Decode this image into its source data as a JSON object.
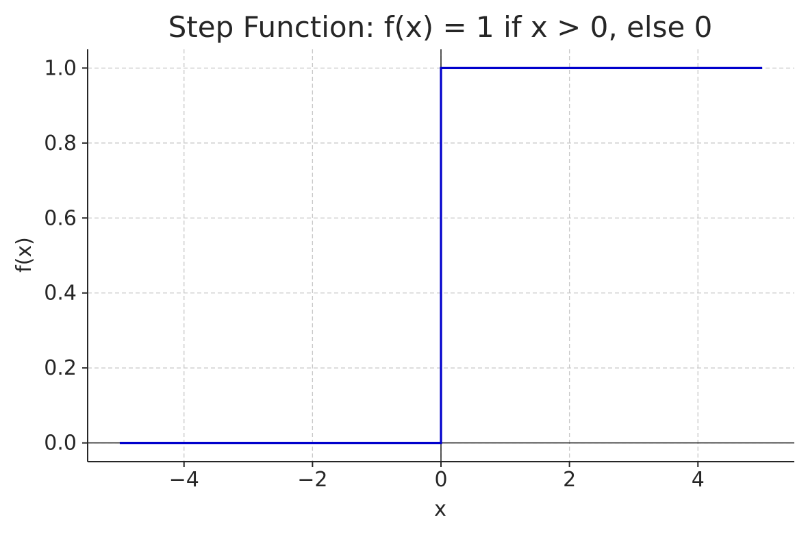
{
  "chart_data": {
    "type": "line",
    "title": "Step Function: f(x) = 1 if x > 0, else 0",
    "xlabel": "x",
    "ylabel": "f(x)",
    "xlim": [
      -5.5,
      5.5
    ],
    "ylim": [
      -0.05,
      1.05
    ],
    "xticks": [
      -4,
      -2,
      0,
      2,
      4
    ],
    "xtick_labels": [
      "−4",
      "−2",
      "0",
      "2",
      "4"
    ],
    "yticks": [
      0.0,
      0.2,
      0.4,
      0.6,
      0.8,
      1.0
    ],
    "ytick_labels": [
      "0.0",
      "0.2",
      "0.4",
      "0.6",
      "0.8",
      "1.0"
    ],
    "grid": true,
    "reference_lines": {
      "x": 0,
      "y": 0
    },
    "series": [
      {
        "color": "#0000cc",
        "x": [
          -5,
          0,
          0,
          5
        ],
        "y": [
          0,
          0,
          1,
          1
        ]
      }
    ]
  }
}
